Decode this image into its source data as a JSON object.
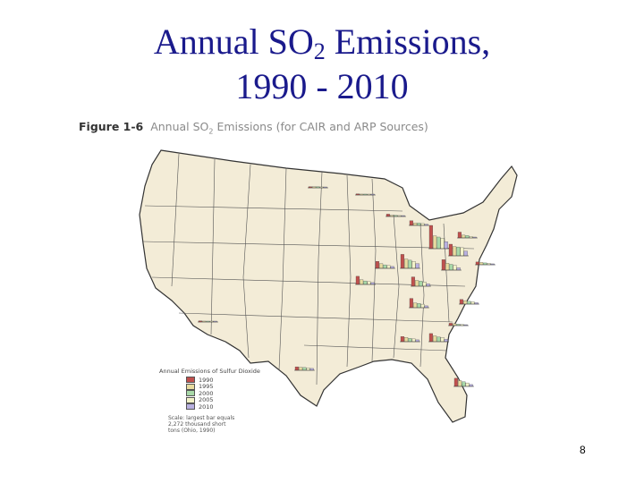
{
  "slide": {
    "title_line1_pre": "Annual SO",
    "title_line1_sub": "2",
    "title_line1_post": " Emissions,",
    "title_line2": "1990 - 2010",
    "page_number": "8"
  },
  "figure": {
    "label": "Figure 1-6",
    "caption_pre": "Annual SO",
    "caption_sub": "2",
    "caption_post": " Emissions (for CAIR and ARP Sources)"
  },
  "legend": {
    "title": "Annual Emissions of Sulfur Dioxide",
    "years": [
      "1990",
      "1995",
      "2000",
      "2005",
      "2010"
    ],
    "colors": [
      "#c0504d",
      "#e8dca0",
      "#a8d8a8",
      "#f2f2c8",
      "#b8b0e0"
    ],
    "scale_note_line1": "Scale: largest bar equals",
    "scale_note_line2": "2,272 thousand short",
    "scale_note_line3": "tons (Ohio, 1990)"
  },
  "colors": {
    "title": "#1a1a8c",
    "land": "#f3ecd7",
    "outline": "#333333"
  },
  "map_data": {
    "scale_max_thousand_tons": 2272,
    "state_groups": [
      {
        "name": "ND",
        "values": [
          0.05,
          0.05,
          0.05,
          0.04,
          0.03
        ]
      },
      {
        "name": "MN",
        "values": [
          0.05,
          0.04,
          0.04,
          0.03,
          0.02
        ]
      },
      {
        "name": "WI",
        "values": [
          0.1,
          0.05,
          0.05,
          0.04,
          0.03
        ]
      },
      {
        "name": "MI",
        "values": [
          0.2,
          0.1,
          0.1,
          0.08,
          0.05
        ]
      },
      {
        "name": "NY",
        "values": [
          0.25,
          0.12,
          0.1,
          0.06,
          0.03
        ]
      },
      {
        "name": "PA",
        "values": [
          0.5,
          0.4,
          0.38,
          0.35,
          0.2
        ]
      },
      {
        "name": "IL",
        "values": [
          0.3,
          0.2,
          0.15,
          0.12,
          0.08
        ]
      },
      {
        "name": "IN",
        "values": [
          0.6,
          0.4,
          0.35,
          0.3,
          0.2
        ]
      },
      {
        "name": "OH",
        "values": [
          1.0,
          0.55,
          0.5,
          0.45,
          0.3
        ]
      },
      {
        "name": "WV",
        "values": [
          0.45,
          0.3,
          0.25,
          0.2,
          0.1
        ]
      },
      {
        "name": "MO",
        "values": [
          0.35,
          0.2,
          0.15,
          0.12,
          0.08
        ]
      },
      {
        "name": "KY",
        "values": [
          0.4,
          0.25,
          0.22,
          0.18,
          0.1
        ]
      },
      {
        "name": "VA",
        "values": [
          0.12,
          0.1,
          0.08,
          0.06,
          0.04
        ]
      },
      {
        "name": "TN",
        "values": [
          0.4,
          0.2,
          0.18,
          0.15,
          0.08
        ]
      },
      {
        "name": "NC",
        "values": [
          0.2,
          0.15,
          0.12,
          0.1,
          0.06
        ]
      },
      {
        "name": "AL",
        "values": [
          0.22,
          0.18,
          0.14,
          0.12,
          0.08
        ]
      },
      {
        "name": "GA",
        "values": [
          0.35,
          0.25,
          0.2,
          0.18,
          0.1
        ]
      },
      {
        "name": "SC",
        "values": [
          0.1,
          0.08,
          0.06,
          0.05,
          0.03
        ]
      },
      {
        "name": "FL",
        "values": [
          0.35,
          0.25,
          0.2,
          0.15,
          0.08
        ]
      },
      {
        "name": "TX",
        "values": [
          0.15,
          0.13,
          0.12,
          0.1,
          0.08
        ]
      },
      {
        "name": "NV",
        "values": [
          0.05,
          0.04,
          0.03,
          0.02,
          0.02
        ]
      }
    ]
  }
}
